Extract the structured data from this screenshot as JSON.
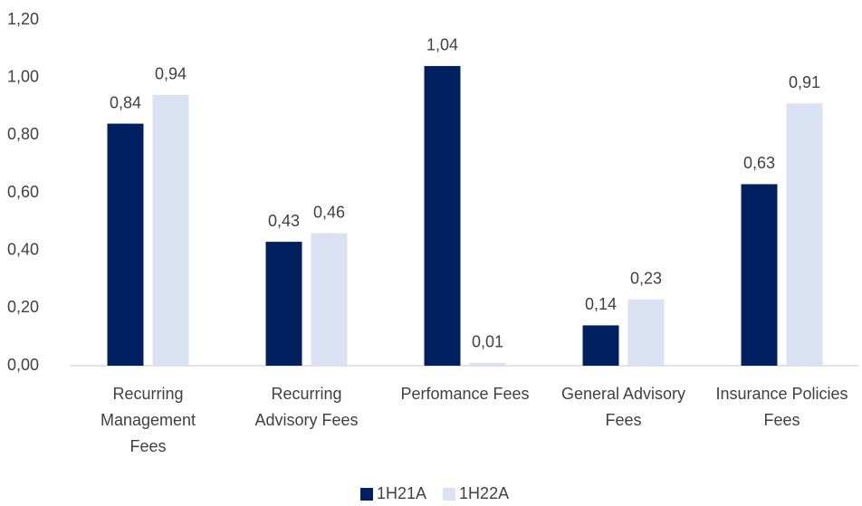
{
  "chart_data": {
    "type": "bar",
    "categories": [
      [
        "Recurring",
        "Management",
        "Fees"
      ],
      [
        "Recurring",
        "Advisory Fees"
      ],
      [
        "Perfomance Fees"
      ],
      [
        "General Advisory",
        "Fees"
      ],
      [
        "Insurance Policies",
        "Fees"
      ]
    ],
    "series": [
      {
        "name": "1H21A",
        "color": "#002060",
        "values": [
          0.84,
          0.43,
          1.04,
          0.14,
          0.63
        ],
        "value_labels": [
          "0,84",
          "0,43",
          "1,04",
          "0,14",
          "0,63"
        ]
      },
      {
        "name": "1H22A",
        "color": "#d9e1f2",
        "values": [
          0.94,
          0.46,
          0.01,
          0.23,
          0.91
        ],
        "value_labels": [
          "0,94",
          "0,46",
          "0,01",
          "0,23",
          "0,91"
        ]
      }
    ],
    "ylim": [
      0,
      1.2
    ],
    "yticks": [
      {
        "value": 0,
        "label": "0,00"
      },
      {
        "value": 0.2,
        "label": "0,20"
      },
      {
        "value": 0.4,
        "label": "0,40"
      },
      {
        "value": 0.6,
        "label": "0,60"
      },
      {
        "value": 0.8,
        "label": "0,80"
      },
      {
        "value": 1.0,
        "label": "1,00"
      },
      {
        "value": 1.2,
        "label": "1,20"
      }
    ],
    "grid": false,
    "legend": "bottom"
  }
}
